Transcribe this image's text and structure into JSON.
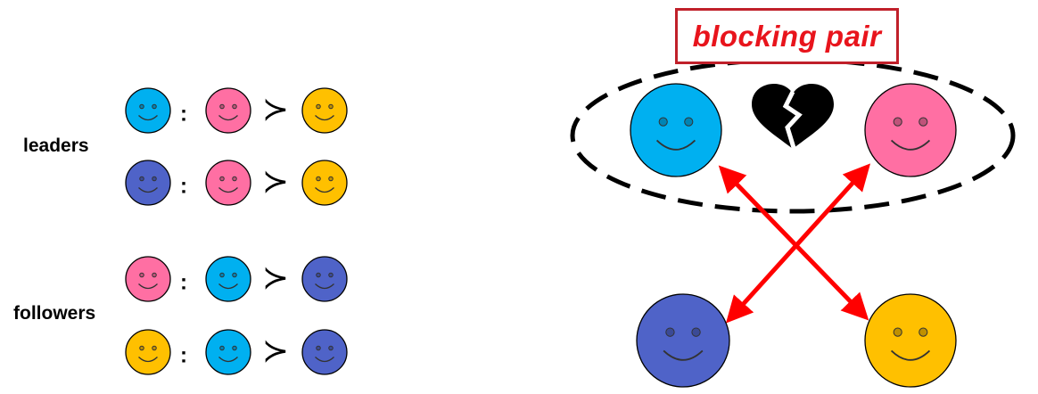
{
  "labels": {
    "leaders": "leaders",
    "followers": "followers",
    "blocking_pair": "blocking pair",
    "colon": ":",
    "prefers": "≻"
  },
  "colors": {
    "cyan": "#00b0f0",
    "pink": "#ff6fa3",
    "blue": "#4f63c8",
    "yellow": "#ffc000",
    "outline": "#000000",
    "arrow": "#ff0000",
    "banner_text": "#e8141c",
    "banner_border": "#c0202a"
  },
  "preferences": [
    {
      "group": "leaders",
      "agent": "cyan",
      "first": "pink",
      "second": "yellow"
    },
    {
      "group": "leaders",
      "agent": "blue",
      "first": "pink",
      "second": "yellow"
    },
    {
      "group": "followers",
      "agent": "pink",
      "first": "cyan",
      "second": "blue"
    },
    {
      "group": "followers",
      "agent": "yellow",
      "first": "cyan",
      "second": "blue"
    }
  ],
  "matching": {
    "blocking_pair": [
      "cyan",
      "pink"
    ],
    "matched_pairs": [
      [
        "cyan",
        "yellow"
      ],
      [
        "pink",
        "blue"
      ]
    ]
  },
  "icons": [
    "smiley-icon",
    "broken-heart-icon",
    "double-arrow-icon"
  ]
}
